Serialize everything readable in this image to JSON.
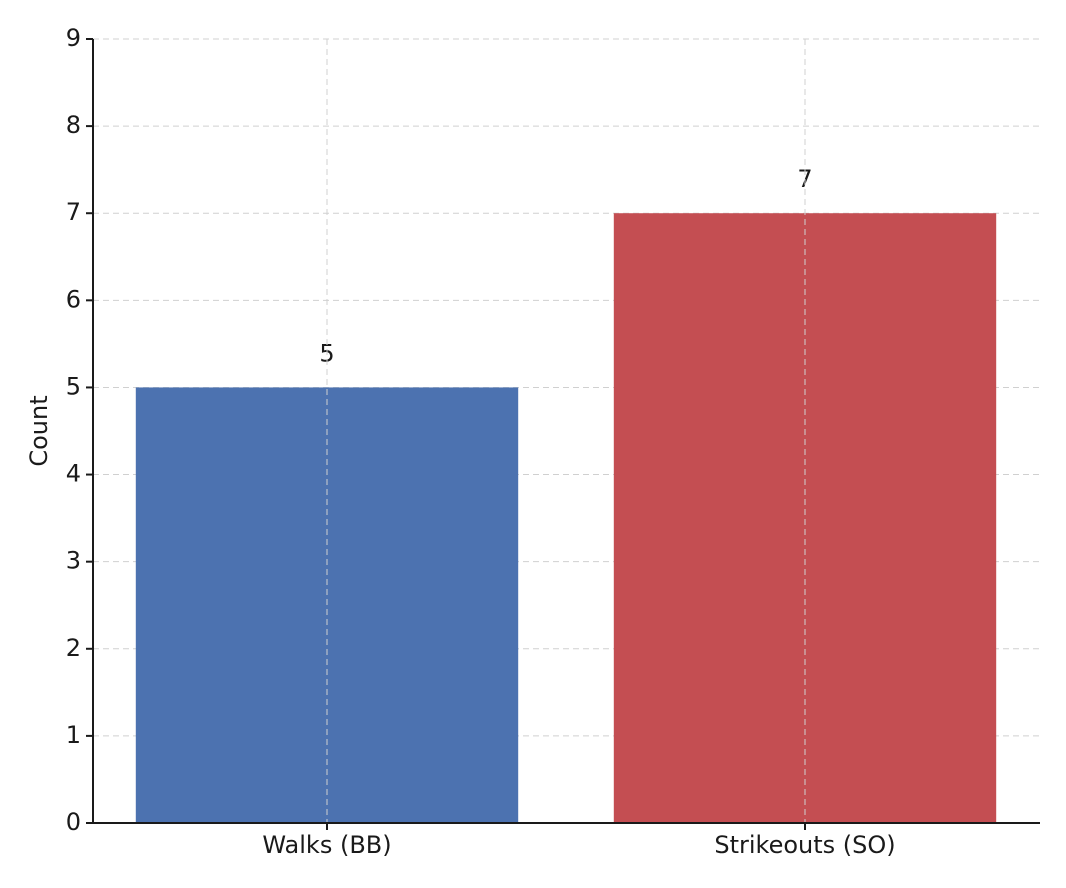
{
  "chart_data": {
    "type": "bar",
    "y_label": "Count",
    "categories": [
      "Walks (BB)",
      "Strikeouts (SO)"
    ],
    "values": [
      5,
      7
    ],
    "colors": [
      "#4c72b0",
      "#c44e52"
    ],
    "ylim": [
      0,
      9
    ],
    "yticks": [
      0,
      1,
      2,
      3,
      4,
      5,
      6,
      7,
      8,
      9
    ],
    "grid": true
  }
}
